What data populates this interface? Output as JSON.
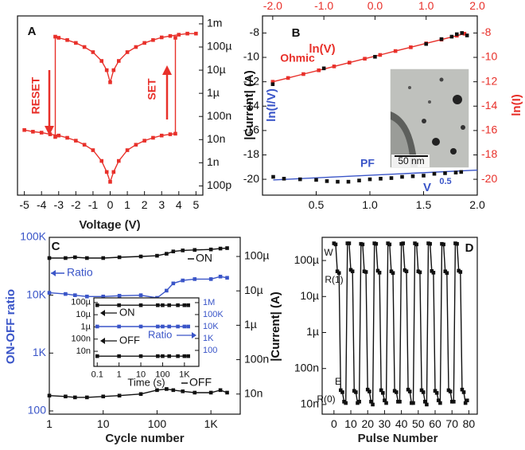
{
  "chart_data": [
    {
      "type": "line",
      "panel": "A",
      "xlabel": "Voltage (V)",
      "xlim": [
        -5.4,
        5.4
      ],
      "xticks": [
        -5,
        -4,
        -3,
        -2,
        -1,
        0,
        1,
        2,
        3,
        4,
        5
      ],
      "y2scale": "log",
      "y2lim": [
        4e-11,
        0.0022
      ],
      "y2ticks": [
        {
          "value": 0.001,
          "label": "1m"
        },
        {
          "value": 0.0001,
          "label": "100µ"
        },
        {
          "value": 1e-05,
          "label": "10µ"
        },
        {
          "value": 1e-06,
          "label": "1µ"
        },
        {
          "value": 1e-07,
          "label": "100n"
        },
        {
          "value": 1e-08,
          "label": "10n"
        },
        {
          "value": 1e-09,
          "label": "1n"
        },
        {
          "value": 1e-10,
          "label": "100p"
        }
      ],
      "annotations": [
        "RESET",
        "SET"
      ],
      "series": [
        {
          "color": "#e8302a",
          "axis": "y2",
          "marker": "square",
          "x": [
            -3.2,
            -3.2,
            -3,
            -2.5,
            -2,
            -1.5,
            -1,
            -0.5,
            -0.2,
            0,
            0.2,
            0.5,
            1,
            1.5,
            2,
            2.5,
            3,
            3.5,
            4,
            4.5,
            5
          ],
          "values": [
            1.3e-08,
            0.00028,
            0.00025,
            0.0002,
            0.00015,
            0.0001,
            6e-05,
            2.5e-05,
            1e-05,
            3e-06,
            1e-05,
            2.5e-05,
            6e-05,
            0.0001,
            0.00015,
            0.0002,
            0.00026,
            0.0003,
            0.00034,
            0.00038,
            0.00038
          ]
        },
        {
          "color": "#e8302a",
          "axis": "y2",
          "marker": "square",
          "x": [
            -5,
            -4.5,
            -4,
            -3.5,
            -3,
            -2.5,
            -2,
            -1.5,
            -1,
            -0.5,
            -0.2,
            0,
            0.2,
            0.5,
            1,
            1.5,
            2,
            2.5,
            3,
            3.5,
            3.8,
            3.8
          ],
          "values": [
            2.6e-08,
            2.2e-08,
            2e-08,
            1.7e-08,
            1.5e-08,
            1.2e-08,
            9e-09,
            6e-09,
            3.5e-09,
            1.2e-09,
            4e-10,
            1.5e-10,
            4e-10,
            1.2e-09,
            3.5e-09,
            6e-09,
            9e-09,
            1.2e-08,
            1.5e-08,
            1.7e-08,
            1.8e-08,
            0.00025
          ]
        }
      ]
    },
    {
      "type": "line",
      "panel": "B",
      "x2label": "ln(V)",
      "ylabel": "|Current| (A)",
      "y2label": "ln(I)",
      "xlim": [
        0,
        2
      ],
      "xticks": [
        0.5,
        {
          "value": 1,
          "label": "1.0"
        },
        1.5,
        {
          "value": 2,
          "label": "2.0"
        }
      ],
      "x2lim": [
        -2.2,
        2
      ],
      "x2ticks": [
        {
          "value": -2,
          "label": "-2.0"
        },
        {
          "value": -1,
          "label": "-1.0"
        },
        {
          "value": 0,
          "label": "0.0"
        },
        {
          "value": 1,
          "label": "1.0"
        },
        {
          "value": 2,
          "label": "2.0"
        }
      ],
      "ylim": [
        -21.3,
        -6.6
      ],
      "yticks": [
        -8,
        -10,
        -12,
        -14,
        -16,
        -18,
        -20
      ],
      "y2lim": [
        -21.3,
        -6.6
      ],
      "y2ticks": [
        -8,
        -10,
        -12,
        -14,
        -16,
        -18,
        -20
      ],
      "x2tick_color": "#e8302a",
      "y2tick_color": "#e8302a",
      "annotations": [
        "Ohmic",
        "PF",
        "V",
        "0.5",
        "ln(I/V)",
        "50 nm"
      ],
      "series": [
        {
          "color": "#e8302a",
          "axis": "y2",
          "xaxis": "x2",
          "marker": "square",
          "x": [
            -2.0,
            -1.7,
            -1.4,
            -1.1,
            -0.8,
            -0.5,
            -0.2,
            0.1,
            0.4,
            0.7,
            1.0,
            1.3,
            1.6,
            1.75
          ],
          "values": [
            -12.0,
            -11.69,
            -11.37,
            -11.06,
            -10.74,
            -10.43,
            -10.11,
            -9.8,
            -9.48,
            -9.17,
            -8.85,
            -8.54,
            -8.22,
            -8.06
          ]
        },
        {
          "color": "#111111",
          "axis": "y2",
          "xaxis": "x2",
          "marker": "square",
          "line": false,
          "x": [
            -2.0,
            -1.0,
            0.0,
            1.0,
            1.3,
            1.5,
            1.6,
            1.7,
            1.8
          ],
          "values": [
            -12.2,
            -10.9,
            -9.95,
            -8.9,
            -8.5,
            -8.3,
            -8.1,
            -8.0,
            -8.2
          ]
        },
        {
          "color": "#3a55c8",
          "x": [
            0.1,
            2.0
          ],
          "values": [
            -20.05,
            -19.25
          ]
        },
        {
          "color": "#111111",
          "marker": "square",
          "line": false,
          "x": [
            0.1,
            0.2,
            0.35,
            0.5,
            0.6,
            0.7,
            0.8,
            0.9,
            1.0,
            1.1,
            1.2,
            1.3,
            1.4,
            1.5,
            1.6,
            1.7,
            1.8,
            1.85
          ],
          "values": [
            -19.8,
            -19.95,
            -20.0,
            -20.05,
            -20.15,
            -20.2,
            -20.2,
            -20.1,
            -20.0,
            -19.95,
            -19.9,
            -19.8,
            -19.75,
            -19.7,
            -19.55,
            -19.5,
            -19.45,
            -19.4
          ]
        }
      ]
    },
    {
      "type": "line",
      "panel": "C",
      "xlabel": "Cycle number",
      "ylabel": "ON-OFF ratio",
      "xscale": "log",
      "xlim": [
        1,
        3500
      ],
      "xticks": [
        1,
        10,
        100,
        {
          "value": 1000,
          "label": "1K"
        }
      ],
      "yscale": "log",
      "ylim": [
        88,
        100000
      ],
      "yticks": [
        100,
        {
          "value": 1000,
          "label": "1K"
        },
        {
          "value": 10000,
          "label": "10K"
        },
        {
          "value": 100000,
          "label": "100K"
        }
      ],
      "y2scale": "log",
      "y2lim": [
        2.6e-09,
        0.00036
      ],
      "y2ticks": [
        {
          "value": 0.0001,
          "label": "100µ"
        },
        {
          "value": 1e-05,
          "label": "10µ"
        },
        {
          "value": 1e-06,
          "label": "1µ"
        },
        {
          "value": 1e-07,
          "label": "100n"
        },
        {
          "value": 1e-08,
          "label": "10n"
        }
      ],
      "ytick_color": "#3a55c8",
      "annotations": [
        "Ratio",
        "ON",
        "OFF"
      ],
      "series": [
        {
          "color": "#111111",
          "axis": "y2",
          "marker": "square",
          "x": [
            1,
            2,
            3,
            5,
            10,
            20,
            50,
            100,
            150,
            200,
            300,
            500,
            1000,
            1500,
            2000
          ],
          "values": [
            9e-05,
            9e-05,
            9.5e-05,
            9e-05,
            9e-05,
            9.5e-05,
            0.0001,
            0.000105,
            0.00012,
            0.00014,
            0.00015,
            0.000155,
            0.00016,
            0.00017,
            0.000175
          ]
        },
        {
          "color": "#111111",
          "axis": "y2",
          "marker": "square",
          "x": [
            1,
            2,
            3,
            5,
            10,
            20,
            50,
            100,
            150,
            200,
            300,
            500,
            1000,
            1500,
            2000
          ],
          "values": [
            9e-09,
            8.5e-09,
            8e-09,
            8e-09,
            8.5e-09,
            9e-09,
            1e-08,
            1.3e-08,
            1.4e-08,
            1.3e-08,
            1.2e-08,
            1.1e-08,
            1.1e-08,
            1.3e-08,
            1.1e-08
          ]
        },
        {
          "color": "#3a55c8",
          "marker": "square",
          "x": [
            1,
            2,
            3,
            5,
            10,
            20,
            50,
            100,
            150,
            200,
            300,
            500,
            1000,
            1500,
            2000
          ],
          "values": [
            11000,
            10500,
            10000,
            9500,
            9500,
            9800,
            10000,
            9000,
            12000,
            16000,
            18000,
            19000,
            19000,
            21000,
            20000
          ]
        }
      ]
    },
    {
      "type": "line",
      "xlabel": "Time (s)",
      "xscale": "log",
      "xlim": [
        0.07,
        4600
      ],
      "xticks": [
        0.1,
        1,
        10,
        100,
        {
          "value": 1000,
          "label": "1K"
        }
      ],
      "yscale": "log",
      "ylim": [
        5.8e-10,
        0.00024
      ],
      "yticks": [
        {
          "value": 0.0001,
          "label": "100µ"
        },
        {
          "value": 1e-05,
          "label": "10µ"
        },
        {
          "value": 1e-06,
          "label": "1µ"
        },
        {
          "value": 1e-07,
          "label": "100n"
        },
        {
          "value": 1e-08,
          "label": "10n"
        }
      ],
      "y2scale": "log",
      "y2lim": [
        4.6,
        2500000.0
      ],
      "y2ticks": [
        {
          "value": 1000000,
          "label": "1M"
        },
        {
          "value": 100000,
          "label": "100K"
        },
        {
          "value": 10000,
          "label": "10K"
        },
        {
          "value": 1000,
          "label": "1K"
        },
        100
      ],
      "y2tick_color": "#3a55c8",
      "annotations": [
        "ON",
        "OFF",
        "Ratio"
      ],
      "series": [
        {
          "color": "#111111",
          "marker": "square",
          "x": [
            0.1,
            1,
            10,
            60,
            100,
            200,
            500,
            1000,
            1500
          ],
          "values": [
            6e-05,
            6e-05,
            6e-05,
            6e-05,
            6e-05,
            6e-05,
            6e-05,
            6e-05,
            6e-05
          ]
        },
        {
          "color": "#111111",
          "marker": "square",
          "x": [
            0.1,
            1,
            10,
            60,
            100,
            200,
            500,
            1000,
            1500
          ],
          "values": [
            4e-09,
            4e-09,
            4e-09,
            4e-09,
            4e-09,
            4e-09,
            4e-09,
            4e-09,
            4e-09
          ]
        },
        {
          "color": "#3a55c8",
          "axis": "y2",
          "marker": "square",
          "x": [
            0.1,
            1,
            10,
            60,
            100,
            200,
            500,
            1000,
            1500
          ],
          "values": [
            10000,
            10000,
            10000,
            10000,
            10000,
            10000,
            10000,
            10000,
            10000
          ]
        }
      ]
    },
    {
      "type": "line",
      "panel": "D",
      "xlabel": "Pulse Number",
      "ylabel": "|Current| (A)",
      "xlim": [
        -7,
        85
      ],
      "xticks": [
        0,
        10,
        20,
        30,
        40,
        50,
        60,
        70,
        80
      ],
      "yscale": "log",
      "ylim": [
        5.4e-09,
        0.00044
      ],
      "yticks": [
        {
          "value": 0.0001,
          "label": "100µ"
        },
        {
          "value": 1e-05,
          "label": "10µ"
        },
        {
          "value": 1e-06,
          "label": "1µ"
        },
        {
          "value": 1e-07,
          "label": "100n"
        },
        {
          "value": 1e-08,
          "label": "10n"
        }
      ],
      "annotations": [
        "W",
        "R(1)",
        "E",
        "R(0)"
      ],
      "series": [
        {
          "color": "#111111",
          "marker": "square",
          "x": [
            0,
            1,
            2,
            3,
            4,
            5,
            6,
            7,
            8,
            9,
            10,
            11,
            12,
            13,
            14,
            15,
            16,
            17,
            18,
            19,
            20,
            21,
            22,
            23,
            24,
            25,
            26,
            27,
            28,
            29,
            30,
            31,
            32,
            33,
            34,
            35,
            36,
            37,
            38,
            39,
            40,
            41,
            42,
            43,
            44,
            45,
            46,
            47,
            48,
            49,
            50,
            51,
            52,
            53,
            54,
            55,
            56,
            57,
            58,
            59,
            60,
            61,
            62,
            63,
            64,
            65,
            66,
            67,
            68,
            69,
            70,
            71,
            72,
            73,
            74,
            75,
            76,
            77,
            78,
            79
          ],
          "values": [
            0.0003,
            0.00028,
            5e-05,
            4.5e-05,
            2.5e-08,
            2.2e-08,
            1.2e-08,
            1.1e-08,
            0.0003,
            0.0003,
            5.5e-05,
            5e-05,
            2.4e-08,
            2.2e-08,
            1.1e-08,
            1.2e-08,
            0.00029,
            0.00028,
            5e-05,
            4.8e-05,
            2.6e-08,
            2.3e-08,
            1.2e-08,
            1e-08,
            0.0003,
            0.00029,
            5.2e-05,
            4.6e-05,
            2.5e-08,
            2.1e-08,
            1.3e-08,
            1.1e-08,
            0.0003,
            0.00028,
            5e-05,
            4.5e-05,
            2.4e-08,
            2.2e-08,
            1.2e-08,
            1.2e-08,
            0.00029,
            0.0003,
            5.4e-05,
            5e-05,
            2.6e-08,
            2.3e-08,
            1.1e-08,
            1.1e-08,
            0.0003,
            0.00028,
            5e-05,
            4.7e-05,
            2.5e-08,
            2.2e-08,
            1.2e-08,
            1e-08,
            0.0003,
            0.00029,
            5.1e-05,
            4.6e-05,
            2.4e-08,
            2.1e-08,
            1.3e-08,
            1.1e-08,
            0.00029,
            0.00028,
            5e-05,
            4.5e-05,
            2.5e-08,
            2.3e-08,
            1.2e-08,
            1.2e-08,
            0.0003,
            0.00029,
            5.2e-05,
            4.8e-05,
            2.6e-08,
            2.2e-08,
            1.1e-08,
            1.3e-08
          ]
        }
      ]
    }
  ]
}
